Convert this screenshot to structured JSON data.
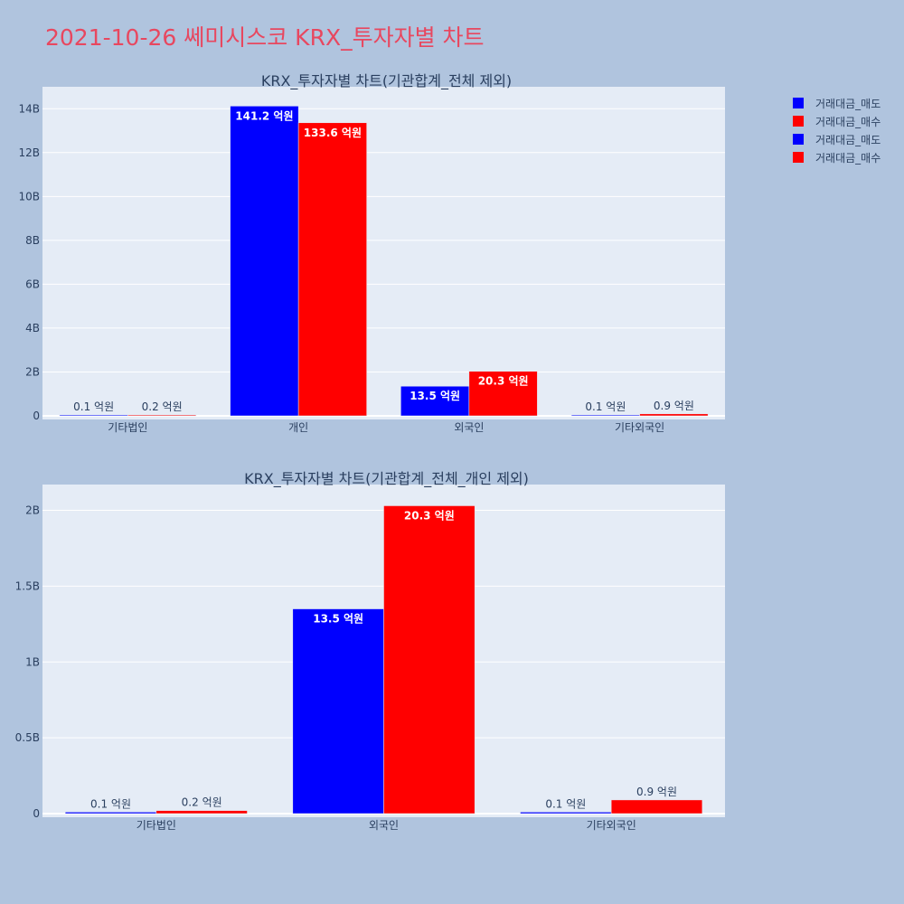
{
  "page_title": "2021-10-26 쎄미시스코 KRX_투자자별 차트",
  "legend": {
    "items": [
      {
        "label": "거래대금_매도",
        "color": "#0000ff"
      },
      {
        "label": "거래대금_매수",
        "color": "#ff0000"
      },
      {
        "label": "거래대금_매도",
        "color": "#0000ff"
      },
      {
        "label": "거래대금_매수",
        "color": "#ff0000"
      }
    ]
  },
  "chart_data": [
    {
      "type": "bar",
      "title": "KRX_투자자별 차트(기관합계_전체 제외)",
      "categories": [
        "기타법인",
        "개인",
        "외국인",
        "기타외국인"
      ],
      "series": [
        {
          "name": "거래대금_매도",
          "color": "#0000ff",
          "values": [
            10000000,
            14120000000,
            1350000000,
            10000000
          ],
          "labels": [
            "0.1 억원",
            "141.2 억원",
            "13.5 억원",
            "0.1 억원"
          ]
        },
        {
          "name": "거래대금_매수",
          "color": "#ff0000",
          "values": [
            20000000,
            13360000000,
            2030000000,
            90000000
          ],
          "labels": [
            "0.2 억원",
            "133.6 억원",
            "20.3 억원",
            "0.9 억원"
          ]
        }
      ],
      "ylim": [
        0,
        15000000000
      ],
      "yticks": [
        0,
        2000000000,
        4000000000,
        6000000000,
        8000000000,
        10000000000,
        12000000000,
        14000000000
      ],
      "ytick_labels": [
        "0",
        "2B",
        "4B",
        "6B",
        "8B",
        "10B",
        "12B",
        "14B"
      ],
      "grid": true
    },
    {
      "type": "bar",
      "title": "KRX_투자자별 차트(기관합계_전체_개인 제외)",
      "categories": [
        "기타법인",
        "외국인",
        "기타외국인"
      ],
      "series": [
        {
          "name": "거래대금_매도",
          "color": "#0000ff",
          "values": [
            10000000,
            1350000000,
            10000000
          ],
          "labels": [
            "0.1 억원",
            "13.5 억원",
            "0.1 억원"
          ]
        },
        {
          "name": "거래대금_매수",
          "color": "#ff0000",
          "values": [
            20000000,
            2030000000,
            90000000
          ],
          "labels": [
            "0.2 억원",
            "20.3 억원",
            "0.9 억원"
          ]
        }
      ],
      "ylim": [
        0,
        2170000000
      ],
      "yticks": [
        0,
        500000000,
        1000000000,
        1500000000,
        2000000000
      ],
      "ytick_labels": [
        "0",
        "0.5B",
        "1B",
        "1.5B",
        "2B"
      ],
      "grid": true
    }
  ]
}
